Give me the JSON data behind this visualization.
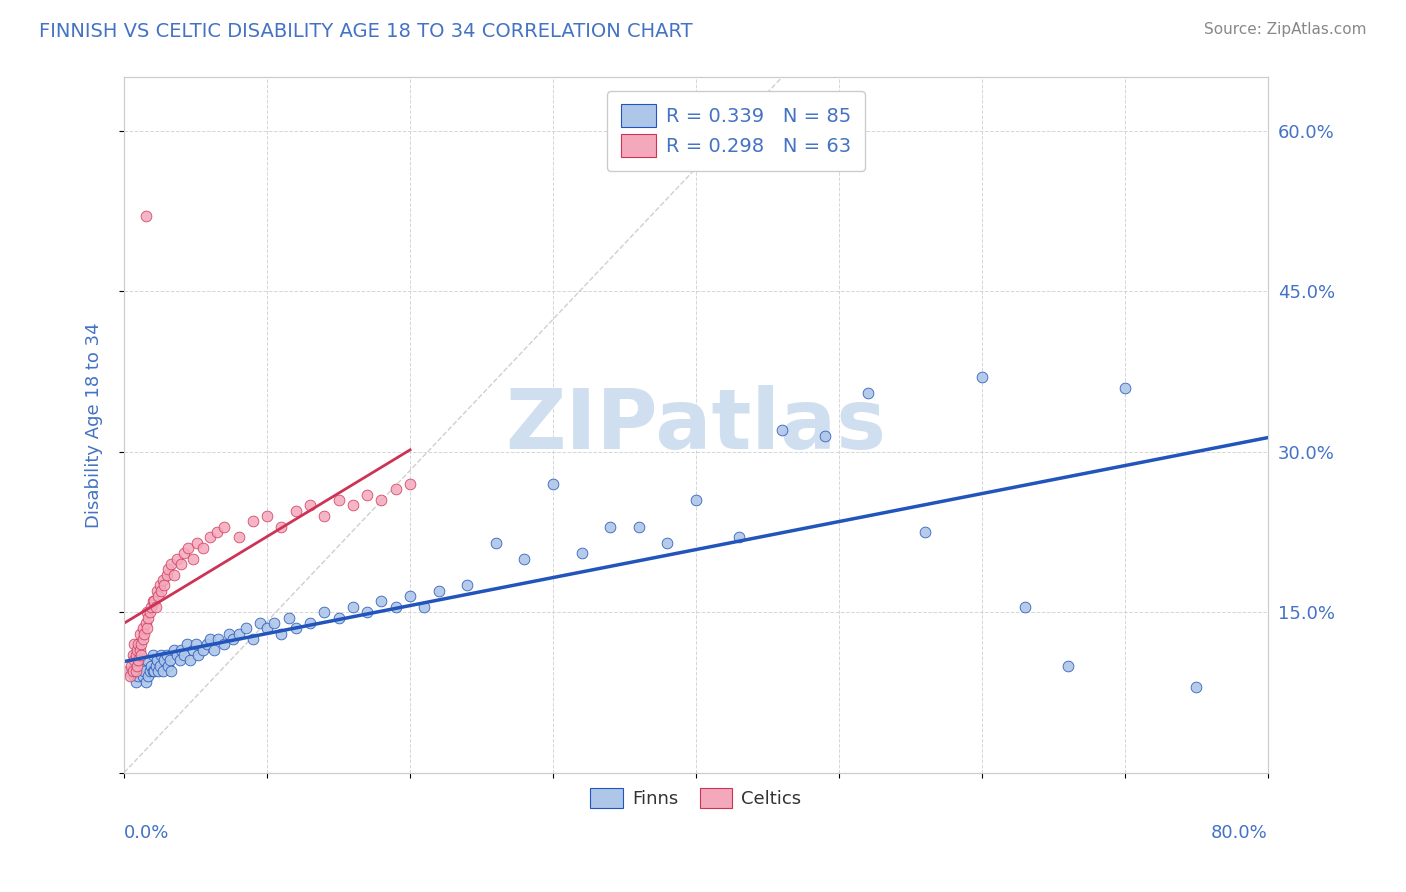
{
  "title": "FINNISH VS CELTIC DISABILITY AGE 18 TO 34 CORRELATION CHART",
  "source": "Source: ZipAtlas.com",
  "ylabel": "Disability Age 18 to 34",
  "y_ticks": [
    0.0,
    0.15,
    0.3,
    0.45,
    0.6
  ],
  "y_tick_labels": [
    "",
    "15.0%",
    "30.0%",
    "45.0%",
    "60.0%"
  ],
  "x_range": [
    0.0,
    0.8
  ],
  "y_range": [
    0.0,
    0.65
  ],
  "legend_r_finn": "R = 0.339",
  "legend_n_finn": "N = 85",
  "legend_r_celt": "R = 0.298",
  "legend_n_celt": "N = 63",
  "finn_color": "#aec6e8",
  "celt_color": "#f4a8bc",
  "finn_line_color": "#2255bb",
  "celt_line_color": "#cc3355",
  "title_color": "#4472c4",
  "source_color": "#888888",
  "background_color": "#ffffff",
  "grid_color": "#cccccc",
  "watermark_text": "ZIPatlas",
  "watermark_color": "#d0dff0",
  "finn_x": [
    0.005,
    0.007,
    0.008,
    0.009,
    0.01,
    0.01,
    0.011,
    0.012,
    0.013,
    0.014,
    0.015,
    0.016,
    0.017,
    0.018,
    0.019,
    0.02,
    0.02,
    0.021,
    0.022,
    0.023,
    0.024,
    0.025,
    0.026,
    0.027,
    0.028,
    0.03,
    0.031,
    0.032,
    0.033,
    0.035,
    0.037,
    0.039,
    0.04,
    0.042,
    0.044,
    0.046,
    0.048,
    0.05,
    0.052,
    0.055,
    0.058,
    0.06,
    0.063,
    0.066,
    0.07,
    0.073,
    0.076,
    0.08,
    0.085,
    0.09,
    0.095,
    0.1,
    0.105,
    0.11,
    0.115,
    0.12,
    0.13,
    0.14,
    0.15,
    0.16,
    0.17,
    0.18,
    0.19,
    0.2,
    0.21,
    0.22,
    0.24,
    0.26,
    0.28,
    0.3,
    0.32,
    0.34,
    0.36,
    0.38,
    0.4,
    0.43,
    0.46,
    0.49,
    0.52,
    0.56,
    0.6,
    0.63,
    0.66,
    0.7,
    0.75
  ],
  "finn_y": [
    0.095,
    0.09,
    0.085,
    0.095,
    0.09,
    0.1,
    0.095,
    0.1,
    0.09,
    0.095,
    0.085,
    0.105,
    0.09,
    0.095,
    0.1,
    0.095,
    0.11,
    0.095,
    0.1,
    0.105,
    0.095,
    0.1,
    0.11,
    0.095,
    0.105,
    0.11,
    0.1,
    0.105,
    0.095,
    0.115,
    0.11,
    0.105,
    0.115,
    0.11,
    0.12,
    0.105,
    0.115,
    0.12,
    0.11,
    0.115,
    0.12,
    0.125,
    0.115,
    0.125,
    0.12,
    0.13,
    0.125,
    0.13,
    0.135,
    0.125,
    0.14,
    0.135,
    0.14,
    0.13,
    0.145,
    0.135,
    0.14,
    0.15,
    0.145,
    0.155,
    0.15,
    0.16,
    0.155,
    0.165,
    0.155,
    0.17,
    0.175,
    0.215,
    0.2,
    0.27,
    0.205,
    0.23,
    0.23,
    0.215,
    0.255,
    0.22,
    0.32,
    0.315,
    0.355,
    0.225,
    0.37,
    0.155,
    0.1,
    0.36,
    0.08
  ],
  "celt_x": [
    0.003,
    0.004,
    0.005,
    0.006,
    0.006,
    0.007,
    0.007,
    0.008,
    0.008,
    0.009,
    0.009,
    0.01,
    0.01,
    0.011,
    0.011,
    0.012,
    0.012,
    0.013,
    0.013,
    0.014,
    0.015,
    0.016,
    0.016,
    0.017,
    0.018,
    0.019,
    0.02,
    0.021,
    0.022,
    0.023,
    0.024,
    0.025,
    0.026,
    0.027,
    0.028,
    0.03,
    0.031,
    0.033,
    0.035,
    0.037,
    0.04,
    0.042,
    0.045,
    0.048,
    0.051,
    0.055,
    0.06,
    0.065,
    0.07,
    0.08,
    0.09,
    0.1,
    0.11,
    0.12,
    0.13,
    0.14,
    0.15,
    0.16,
    0.17,
    0.18,
    0.19,
    0.2,
    0.015
  ],
  "celt_y": [
    0.095,
    0.09,
    0.1,
    0.11,
    0.095,
    0.105,
    0.12,
    0.11,
    0.095,
    0.115,
    0.1,
    0.12,
    0.105,
    0.115,
    0.13,
    0.12,
    0.11,
    0.125,
    0.135,
    0.13,
    0.14,
    0.135,
    0.15,
    0.145,
    0.15,
    0.155,
    0.16,
    0.16,
    0.155,
    0.17,
    0.165,
    0.175,
    0.17,
    0.18,
    0.175,
    0.185,
    0.19,
    0.195,
    0.185,
    0.2,
    0.195,
    0.205,
    0.21,
    0.2,
    0.215,
    0.21,
    0.22,
    0.225,
    0.23,
    0.22,
    0.235,
    0.24,
    0.23,
    0.245,
    0.25,
    0.24,
    0.255,
    0.25,
    0.26,
    0.255,
    0.265,
    0.27,
    0.52
  ]
}
